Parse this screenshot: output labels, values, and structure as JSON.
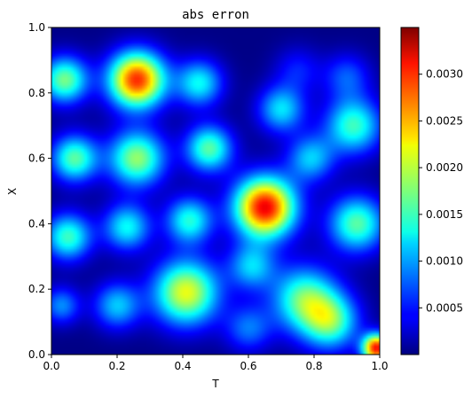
{
  "chart_data": {
    "type": "heatmap",
    "title": "abs erron",
    "xlabel": "T",
    "ylabel": "X",
    "xlim": [
      0.0,
      1.0
    ],
    "ylim": [
      0.0,
      1.0
    ],
    "x_ticks": [
      "0.0",
      "0.2",
      "0.4",
      "0.6",
      "0.8",
      "1.0"
    ],
    "y_ticks": [
      "0.0",
      "0.2",
      "0.4",
      "0.6",
      "0.8",
      "1.0"
    ],
    "colormap": "jet",
    "colorbar": {
      "range": [
        0.0,
        0.0035
      ],
      "ticks": [
        "0.0005",
        "0.0010",
        "0.0015",
        "0.0020",
        "0.0025",
        "0.0030"
      ]
    },
    "grid": false,
    "blobs": [
      {
        "t": 0.26,
        "x": 0.84,
        "peak": 0.0029,
        "spread": 0.06
      },
      {
        "t": 0.65,
        "x": 0.45,
        "peak": 0.0031,
        "spread": 0.065
      },
      {
        "t": 0.41,
        "x": 0.19,
        "peak": 0.0021,
        "spread": 0.07
      },
      {
        "t": 0.04,
        "x": 0.84,
        "peak": 0.0017,
        "spread": 0.05
      },
      {
        "t": 0.07,
        "x": 0.6,
        "peak": 0.0016,
        "spread": 0.05
      },
      {
        "t": 0.05,
        "x": 0.36,
        "peak": 0.0015,
        "spread": 0.05
      },
      {
        "t": 0.26,
        "x": 0.6,
        "peak": 0.0018,
        "spread": 0.06
      },
      {
        "t": 0.23,
        "x": 0.39,
        "peak": 0.0013,
        "spread": 0.05
      },
      {
        "t": 0.42,
        "x": 0.41,
        "peak": 0.0014,
        "spread": 0.05
      },
      {
        "t": 0.45,
        "x": 0.83,
        "peak": 0.0013,
        "spread": 0.05
      },
      {
        "t": 0.48,
        "x": 0.63,
        "peak": 0.0016,
        "spread": 0.05
      },
      {
        "t": 0.7,
        "x": 0.75,
        "peak": 0.0012,
        "spread": 0.05
      },
      {
        "t": 0.92,
        "x": 0.7,
        "peak": 0.0015,
        "spread": 0.06
      },
      {
        "t": 0.93,
        "x": 0.4,
        "peak": 0.0016,
        "spread": 0.06
      },
      {
        "t": 0.79,
        "x": 0.6,
        "peak": 0.0011,
        "spread": 0.05
      },
      {
        "t": 0.77,
        "x": 0.17,
        "peak": 0.0016,
        "spread": 0.07
      },
      {
        "t": 0.85,
        "x": 0.1,
        "peak": 0.0015,
        "spread": 0.06
      },
      {
        "t": 0.61,
        "x": 0.27,
        "peak": 0.0011,
        "spread": 0.05
      },
      {
        "t": 0.2,
        "x": 0.15,
        "peak": 0.0011,
        "spread": 0.05
      },
      {
        "t": 0.03,
        "x": 0.15,
        "peak": 0.0009,
        "spread": 0.04
      },
      {
        "t": 0.9,
        "x": 0.85,
        "peak": 0.0007,
        "spread": 0.05
      },
      {
        "t": 0.75,
        "x": 0.87,
        "peak": 0.0005,
        "spread": 0.05
      },
      {
        "t": 0.6,
        "x": 0.08,
        "peak": 0.0008,
        "spread": 0.05
      },
      {
        "t": 0.99,
        "x": 0.02,
        "peak": 0.003,
        "spread": 0.03
      }
    ]
  }
}
